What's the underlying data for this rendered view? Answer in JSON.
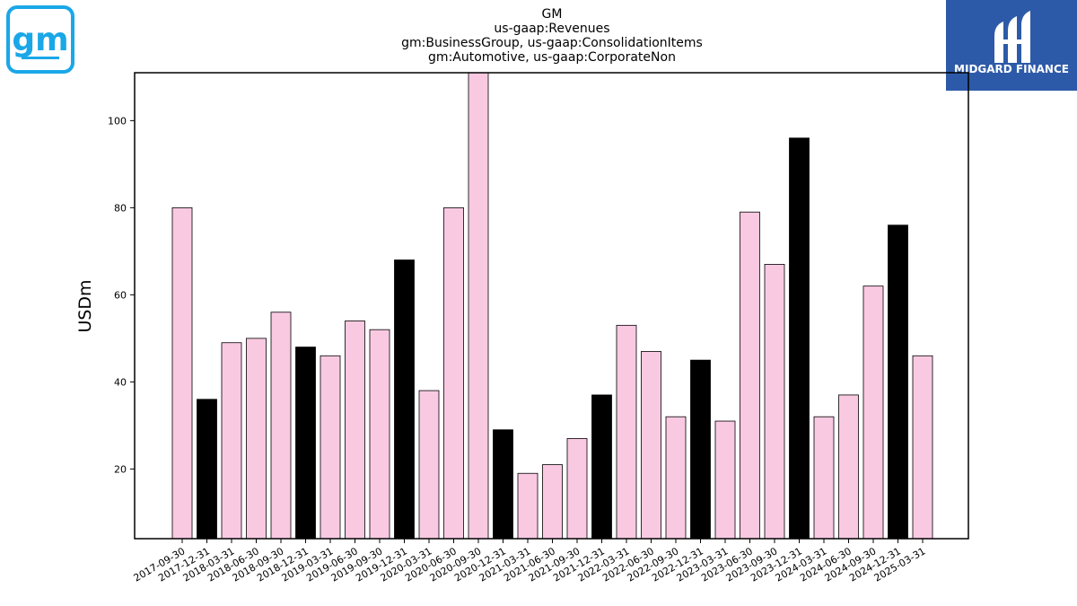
{
  "logos": {
    "company_logo_text": "gm",
    "brand_name": "MIDGARD FINANCE"
  },
  "colors": {
    "quarter_bar": "#f9c9e2",
    "year_end_bar": "#000000",
    "axis": "#000000",
    "gm_logo": "#1aa7e8",
    "brand_bg": "#2d5aa8"
  },
  "chart_data": {
    "type": "bar",
    "title_lines": [
      "GM",
      "us-gaap:Revenues",
      "gm:BusinessGroup, us-gaap:ConsolidationItems",
      "gm:Automotive, us-gaap:CorporateNon"
    ],
    "xlabel": "",
    "ylabel": "USDm",
    "ylim": [
      4,
      111
    ],
    "yticks": [
      20,
      40,
      60,
      80,
      100
    ],
    "grid": false,
    "categories": [
      "2017-09-30",
      "2017-12-31",
      "2018-03-31",
      "2018-06-30",
      "2018-09-30",
      "2018-12-31",
      "2019-03-31",
      "2019-06-30",
      "2019-09-30",
      "2019-12-31",
      "2020-03-31",
      "2020-06-30",
      "2020-09-30",
      "2020-12-31",
      "2021-03-31",
      "2021-06-30",
      "2021-09-30",
      "2021-12-31",
      "2022-03-31",
      "2022-06-30",
      "2022-09-30",
      "2022-12-31",
      "2023-03-31",
      "2023-06-30",
      "2023-09-30",
      "2023-12-31",
      "2024-03-31",
      "2024-06-30",
      "2024-09-30",
      "2024-12-31",
      "2025-03-31"
    ],
    "values": [
      80,
      36,
      49,
      50,
      56,
      48,
      46,
      54,
      52,
      68,
      38,
      80,
      112,
      29,
      19,
      21,
      27,
      37,
      53,
      47,
      32,
      45,
      31,
      79,
      67,
      96,
      32,
      37,
      62,
      76,
      46
    ]
  }
}
